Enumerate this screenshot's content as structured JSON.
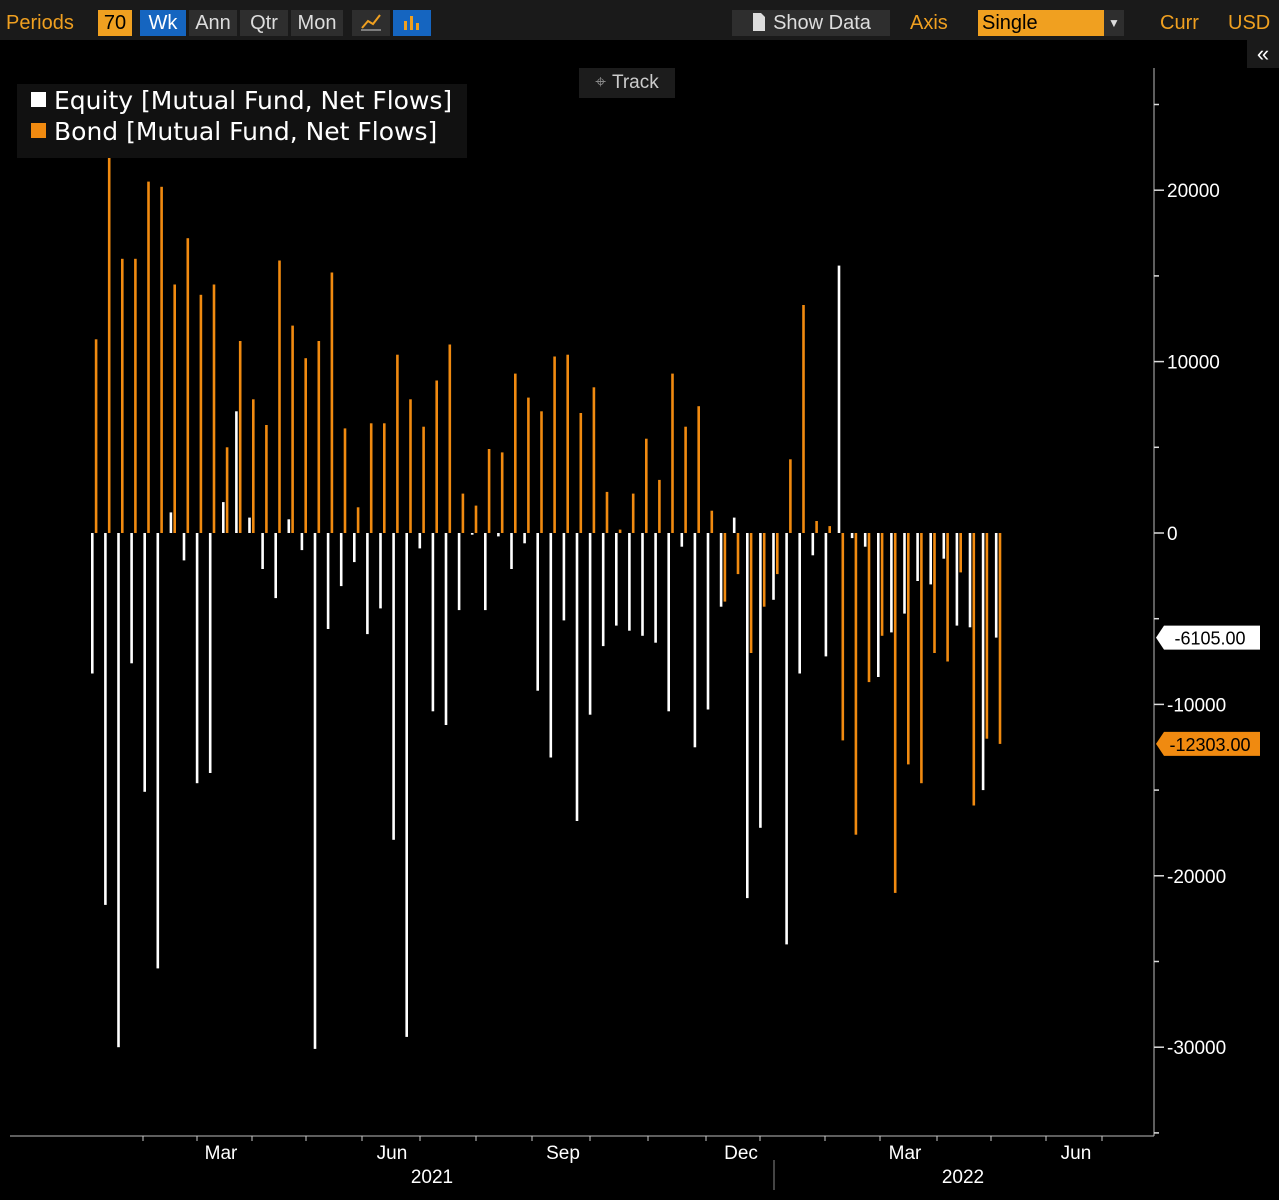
{
  "toolbar": {
    "periods_label": "Periods",
    "periods_value": "70",
    "wk": "Wk",
    "ann": "Ann",
    "qtr": "Qtr",
    "mon": "Mon",
    "show_data": "Show Data",
    "axis_label": "Axis",
    "axis_value": "Single",
    "curr_label": "Curr",
    "curr_value": "USD",
    "collapse": "«"
  },
  "track_label": "Track",
  "colors": {
    "equity": "#ffffff",
    "bond": "#f08a10",
    "background": "#000000"
  },
  "chart_data": {
    "type": "bar",
    "grid": false,
    "legend_position": "top-left",
    "y_axis_side": "right",
    "ylim": [
      -36000,
      27000
    ],
    "yticks": [
      20000,
      10000,
      0,
      -10000,
      -20000,
      -30000
    ],
    "ytick_labels": [
      "20000",
      "10000",
      "0",
      "-10000",
      "-20000",
      "-30000"
    ],
    "x_month_labels": [
      "Mar",
      "Jun",
      "Sep",
      "Dec",
      "Mar",
      "Jun"
    ],
    "x_year_labels": [
      "2021",
      "2022"
    ],
    "last_values": {
      "equity": "-6105.00",
      "bond": "-12303.00"
    },
    "series": [
      {
        "name": "Equity [Mutual Fund, Net Flows]",
        "values": [
          -8200,
          -21700,
          -30000,
          -7600,
          -15100,
          -25400,
          1200,
          -1600,
          -14600,
          -14000,
          1800,
          7100,
          900,
          -2100,
          -3800,
          800,
          -1000,
          -30100,
          -5600,
          -3100,
          -1700,
          -5900,
          -4400,
          -17900,
          -29400,
          -900,
          -10400,
          -11200,
          -4500,
          -100,
          -4500,
          -200,
          -2100,
          -600,
          -9200,
          -13100,
          -5100,
          -16800,
          -10600,
          -6600,
          -5400,
          -5700,
          -6000,
          -6400,
          -10400,
          -800,
          -12500,
          -10300,
          -4300,
          900,
          -21300,
          -17200,
          -3900,
          -24000,
          -8200,
          -1300,
          -7200,
          15600,
          -300,
          -800,
          -8400,
          -5800,
          -4700,
          -2800,
          -3000,
          -1500,
          -5400,
          -5500,
          -15000,
          -6105
        ]
      },
      {
        "name": "Bond [Mutual Fund, Net Flows]",
        "values": [
          11300,
          22100,
          16000,
          16000,
          20500,
          20200,
          14500,
          17200,
          13900,
          14500,
          5000,
          11200,
          7800,
          6300,
          15900,
          12100,
          10200,
          11200,
          15200,
          6100,
          1500,
          6400,
          6400,
          10400,
          7800,
          6200,
          8900,
          11000,
          2300,
          1600,
          4900,
          4700,
          9300,
          7900,
          7100,
          10300,
          10400,
          7000,
          8500,
          2400,
          200,
          2300,
          5500,
          3100,
          9300,
          6200,
          7400,
          1300,
          -4000,
          -2400,
          -7000,
          -4300,
          -2400,
          4300,
          13300,
          700,
          400,
          -12100,
          -17600,
          -8700,
          -6000,
          -21000,
          -13500,
          -14600,
          -7000,
          -7500,
          -2300,
          -15900,
          -12000,
          -12303
        ]
      }
    ]
  }
}
